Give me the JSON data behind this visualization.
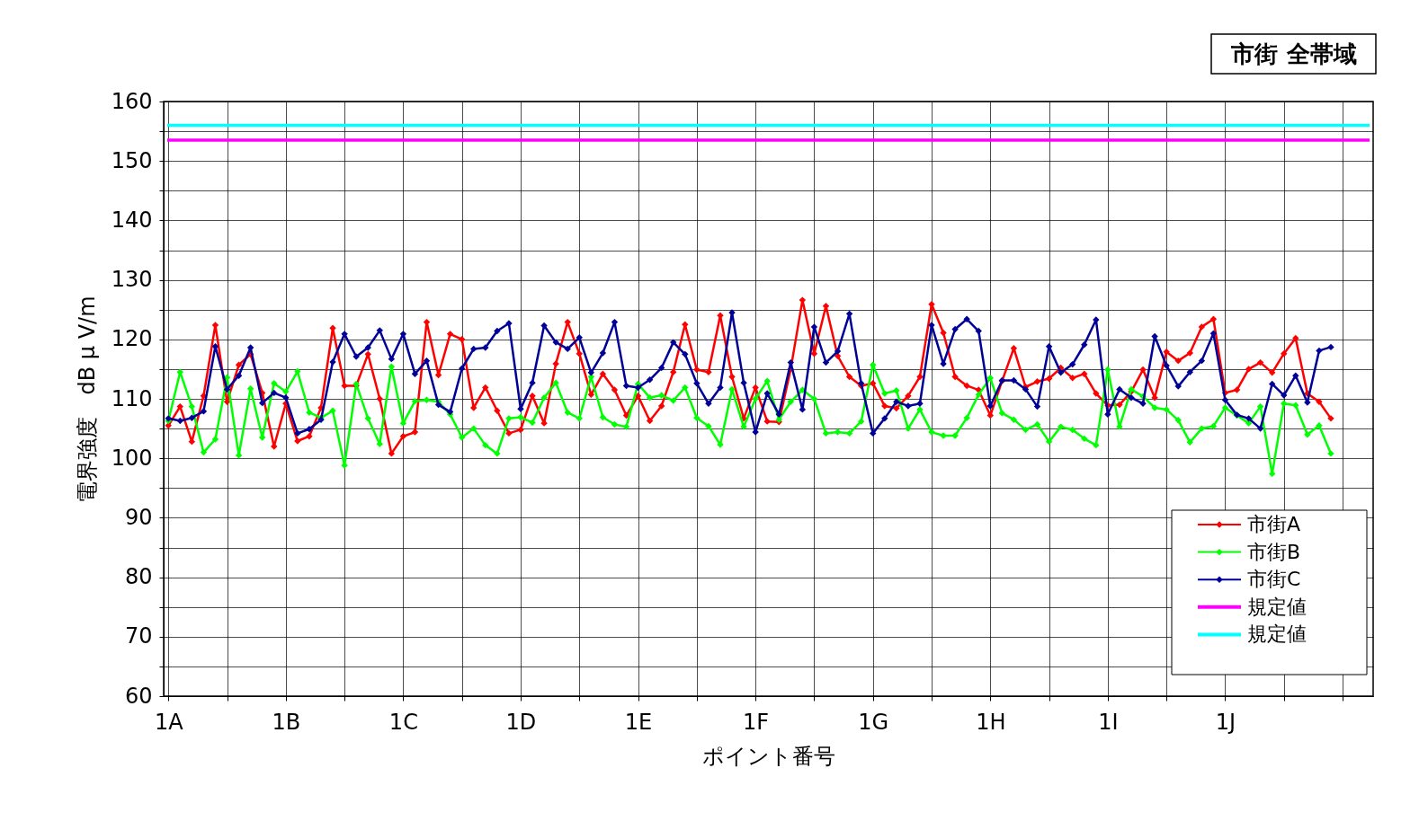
{
  "chart_data": {
    "type": "line",
    "title": "市街 全帯域",
    "xlabel": "ポイント番号",
    "ylabel": "電界強度　dB μ V/m",
    "categories": [
      "1A",
      null,
      null,
      null,
      null,
      null,
      null,
      null,
      null,
      null,
      "1B",
      null,
      null,
      null,
      null,
      null,
      null,
      null,
      null,
      null,
      "1C",
      null,
      null,
      null,
      null,
      null,
      null,
      null,
      null,
      null,
      "1D",
      null,
      null,
      null,
      null,
      null,
      null,
      null,
      null,
      null,
      "1E",
      null,
      null,
      null,
      null,
      null,
      null,
      null,
      null,
      null,
      "1F",
      null,
      null,
      null,
      null,
      null,
      null,
      null,
      null,
      null,
      "1G",
      null,
      null,
      null,
      null,
      null,
      null,
      null,
      null,
      null,
      "1H",
      null,
      null,
      null,
      null,
      null,
      null,
      null,
      null,
      null,
      "1I",
      null,
      null,
      null,
      null,
      null,
      null,
      null,
      null,
      null,
      "1J",
      null,
      null,
      null,
      null,
      null,
      null,
      null,
      null,
      null
    ],
    "series": [
      {
        "name": "市街A",
        "color": "#ff0000",
        "values": [
          105.5,
          108.7,
          102.8,
          110.5,
          122.4,
          109.5,
          115.7,
          117.5,
          111,
          102,
          109.2,
          102.9,
          103.7,
          108.5,
          121.9,
          112.2,
          112.2,
          117.5,
          110,
          100.8,
          103.7,
          104.4,
          122.9,
          114,
          120.9,
          120,
          108.5,
          111.9,
          108,
          104.2,
          104.8,
          110.5,
          105.9,
          115.9,
          122.9,
          117.6,
          110.7,
          114.2,
          111.5,
          107.2,
          110.5,
          106.3,
          108.8,
          114.5,
          122.5,
          114.9,
          114.5,
          124,
          113.7,
          106.7,
          111.9,
          106.2,
          106.1,
          115,
          126.6,
          117.6,
          125.6,
          117.2,
          113.7,
          112.2,
          112.6,
          108.8,
          108.4,
          110.5,
          113.7,
          125.9,
          121.1,
          113.7,
          112.2,
          111.5,
          107.2,
          113,
          118.5,
          112,
          112.9,
          113.4,
          115.2,
          113.5,
          114.2,
          110.9,
          108.9,
          109,
          111.2,
          114.9,
          110.2,
          117.9,
          116.4,
          117.7,
          122.1,
          123.4,
          111,
          111.5,
          115,
          116.1,
          114.4,
          117.6,
          120.2,
          110.9,
          109.5,
          106.7
        ]
      },
      {
        "name": "市街B",
        "color": "#00ff00",
        "values": [
          106.3,
          114.5,
          108.7,
          101,
          103.2,
          113.6,
          100.5,
          111.7,
          103.5,
          112.6,
          111.2,
          114.6,
          107.7,
          106.8,
          108,
          98.8,
          112.5,
          106.7,
          102.4,
          115.4,
          105.9,
          109.6,
          109.8,
          109.5,
          107.4,
          103.5,
          105,
          102.2,
          100.8,
          106.7,
          106.9,
          106,
          110.2,
          112.7,
          107.7,
          106.7,
          113.7,
          106.9,
          105.7,
          105.3,
          112.5,
          110.2,
          110.6,
          109.7,
          111.9,
          106.8,
          105.4,
          102.3,
          111.6,
          105.3,
          110,
          113,
          106.5,
          109.5,
          111.5,
          110,
          104.2,
          104.4,
          104.2,
          106.2,
          115.7,
          110.9,
          111.4,
          105,
          108.2,
          104.4,
          103.8,
          103.8,
          106.8,
          110.7,
          113.5,
          107.6,
          106.5,
          104.8,
          105.7,
          102.8,
          105.3,
          104.8,
          103.3,
          102.2,
          114.9,
          105.3,
          111.6,
          110.4,
          108.5,
          108.2,
          106.4,
          102.7,
          105,
          105.4,
          108.5,
          107.2,
          105.9,
          108.7,
          97.4,
          109.2,
          108.9,
          104,
          105.5,
          100.8
        ]
      },
      {
        "name": "市街C",
        "color": "#000099",
        "values": [
          106.7,
          106.3,
          106.8,
          107.9,
          118.8,
          111.6,
          113.9,
          118.6,
          109.3,
          111,
          110.2,
          104.2,
          104.9,
          106.5,
          116.2,
          120.9,
          117.1,
          118.6,
          121.5,
          116.7,
          120.9,
          114.2,
          116.4,
          109,
          107.8,
          115.1,
          118.4,
          118.6,
          121.4,
          122.7,
          108.3,
          112.7,
          122.3,
          119.5,
          118.4,
          120.3,
          114.4,
          117.7,
          122.9,
          112.2,
          111.9,
          113.2,
          115.2,
          119.5,
          117.5,
          112.6,
          109.2,
          111.9,
          124.5,
          112.7,
          104.4,
          110.9,
          107.4,
          116.1,
          108.2,
          122.1,
          116.1,
          118,
          124.3,
          112.6,
          104.2,
          106.7,
          109.5,
          108.8,
          109.2,
          122.4,
          115.9,
          121.7,
          123.4,
          121.4,
          108.8,
          113.1,
          113.1,
          111.6,
          108.7,
          118.8,
          114.4,
          115.8,
          119.1,
          123.3,
          107.4,
          111.6,
          110.2,
          109.2,
          120.5,
          115.6,
          112.1,
          114.5,
          116.4,
          121,
          109.8,
          107.3,
          106.7,
          105,
          112.5,
          110.6,
          113.9,
          109.4,
          118.1,
          118.7
        ]
      }
    ],
    "marker": "diamond",
    "line_style": "solid",
    "ref_lines": [
      {
        "axis": "y",
        "value": 153.5,
        "label": "規定値",
        "color": "#ff00ff"
      },
      {
        "axis": "y",
        "value": 156,
        "label": "規定値",
        "color": "#00ffff"
      }
    ],
    "ylim": [
      60,
      160
    ],
    "yticks": [
      60,
      {
        "value": 65,
        "label": null
      },
      70,
      {
        "value": 75,
        "label": null
      },
      80,
      {
        "value": 85,
        "label": null
      },
      90,
      {
        "value": 95,
        "label": null
      },
      100,
      {
        "value": 105,
        "label": null
      },
      110,
      {
        "value": 115,
        "label": null
      },
      120,
      {
        "value": 125,
        "label": null
      },
      130,
      {
        "value": 135,
        "label": null
      },
      140,
      {
        "value": 145,
        "label": null
      },
      150,
      {
        "value": 155,
        "label": null
      },
      160
    ],
    "grid": true,
    "legend": "bottom right"
  }
}
